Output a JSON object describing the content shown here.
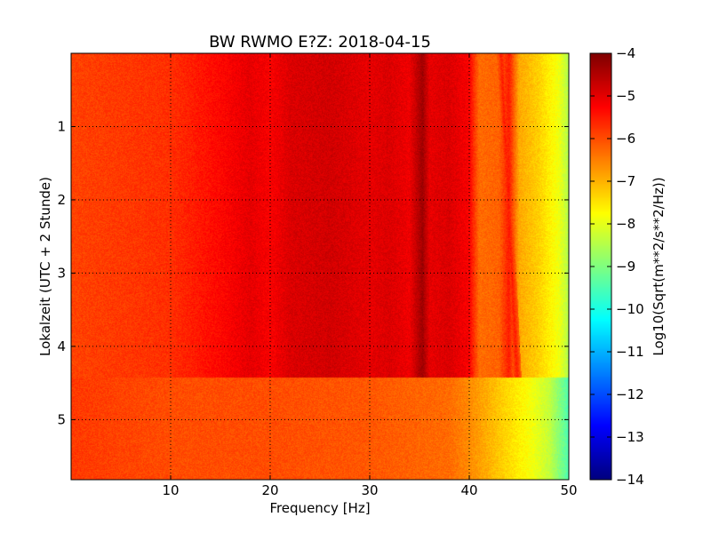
{
  "chart_data": {
    "type": "heatmap",
    "title": "BW RWMO E?Z: 2018-04-15",
    "xlabel": "Frequency [Hz]",
    "ylabel": "Lokalzeit (UTC + 2 Stunde)",
    "xlim": [
      0,
      50
    ],
    "ylim": [
      5.82,
      0
    ],
    "x_ticks": [
      10,
      20,
      30,
      40,
      50
    ],
    "y_ticks": [
      1,
      2,
      3,
      4,
      5
    ],
    "grid": true,
    "colormap": "jet",
    "colorbar": {
      "label": "Log10(Sqrt(m**2/s**2/Hz))",
      "range": [
        -14,
        -4
      ],
      "ticks": [
        -4,
        -5,
        -6,
        -7,
        -8,
        -9,
        -10,
        -11,
        -12,
        -13,
        -14
      ]
    },
    "segments": [
      {
        "time_range": [
          0,
          4.42
        ],
        "description_values": "baseline about -6 log10 from 0-40 Hz, strong energy bands near 18-20, 22-30, 31-33, 35 and 38-40 Hz, decreasing to about -8 at 50 Hz",
        "baseline": [
          [
            0,
            -5.9
          ],
          [
            10,
            -5.7
          ],
          [
            15,
            -5.3
          ],
          [
            18,
            -5.0
          ],
          [
            20,
            -5.2
          ],
          [
            22,
            -4.9
          ],
          [
            26,
            -4.8
          ],
          [
            30,
            -5.0
          ],
          [
            32,
            -4.9
          ],
          [
            34,
            -5.1
          ],
          [
            35.3,
            -4.3
          ],
          [
            36,
            -5.0
          ],
          [
            38,
            -4.9
          ],
          [
            40,
            -5.2
          ],
          [
            41,
            -6.3
          ],
          [
            43,
            -6.2
          ],
          [
            44,
            -5.5
          ],
          [
            45,
            -6.9
          ],
          [
            47,
            -7.3
          ],
          [
            49,
            -7.9
          ],
          [
            50,
            -8.5
          ]
        ]
      },
      {
        "time_range": [
          4.42,
          5.82
        ],
        "description_values": "quieter period, about -6 at low frequency, -6.5 near 40 Hz and about -9.5 at 50 Hz",
        "baseline": [
          [
            0,
            -5.8
          ],
          [
            10,
            -6.0
          ],
          [
            20,
            -6.0
          ],
          [
            30,
            -6.1
          ],
          [
            38,
            -6.3
          ],
          [
            40,
            -6.6
          ],
          [
            42,
            -7.0
          ],
          [
            44,
            -7.4
          ],
          [
            46,
            -7.8
          ],
          [
            48,
            -8.3
          ],
          [
            50,
            -9.5
          ]
        ]
      }
    ],
    "line_features": [
      {
        "frequency": 35.3,
        "time_range": [
          0,
          4.42
        ],
        "value": -4.3
      },
      {
        "frequency_start": 43.2,
        "frequency_end": 44.8,
        "time_range": [
          0,
          4.42
        ],
        "value": -5.5
      }
    ]
  }
}
